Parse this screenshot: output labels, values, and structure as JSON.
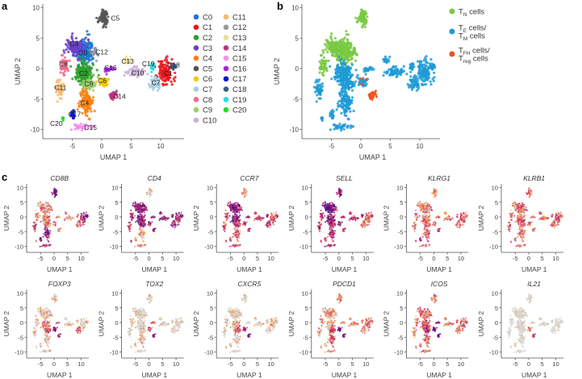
{
  "panel_labels": {
    "a": "a",
    "b": "b",
    "c": "c"
  },
  "axis": {
    "x_label": "UMAP 1",
    "y_label": "UMAP 2",
    "x_ticks": [
      "-5",
      "0",
      "5",
      "10"
    ],
    "y_ticks": [
      "10",
      "5",
      "0",
      "-5",
      "-10"
    ]
  },
  "chart_data": [
    {
      "panel": "a",
      "type": "scatter",
      "xlabel": "UMAP 1",
      "ylabel": "UMAP 2",
      "xlim": [
        -9,
        13
      ],
      "ylim": [
        -11,
        10
      ],
      "x_ticks": [
        -5,
        0,
        5,
        10
      ],
      "y_ticks": [
        10,
        5,
        0,
        -5,
        -10
      ],
      "legend_placement": "right",
      "clusters": [
        {
          "name": "C0",
          "color": "#1f77d0",
          "center": [
            -2.8,
            3.0
          ],
          "spread": [
            1.3,
            1.8
          ],
          "weight": 3,
          "label_xy": [
            -3.2,
            2.6
          ]
        },
        {
          "name": "C1",
          "color": "#e8161b",
          "center": [
            10.9,
            -0.5
          ],
          "spread": [
            1.0,
            1.6
          ],
          "weight": 2,
          "label_xy": [
            11.3,
            -0.8
          ]
        },
        {
          "name": "C2",
          "color": "#2ca02c",
          "center": [
            -3.0,
            -0.8
          ],
          "spread": [
            1.3,
            1.3
          ],
          "weight": 3,
          "label_xy": [
            -3.1,
            -0.8
          ]
        },
        {
          "name": "C3",
          "color": "#6a3fc8",
          "center": [
            -4.5,
            3.5
          ],
          "spread": [
            1.2,
            1.3
          ],
          "weight": 2,
          "label_xy": [
            -4.7,
            4.1
          ]
        },
        {
          "name": "C4",
          "color": "#ff7f0e",
          "center": [
            -2.6,
            -5.5
          ],
          "spread": [
            1.0,
            1.8
          ],
          "weight": 2,
          "label_xy": [
            -2.9,
            -5.6
          ]
        },
        {
          "name": "C5",
          "color": "#555555",
          "center": [
            0.3,
            8.5
          ],
          "spread": [
            0.7,
            1.1
          ],
          "weight": 1.5,
          "label_xy": [
            2.3,
            8.3
          ]
        },
        {
          "name": "C6",
          "color": "#f5c800",
          "center": [
            0.3,
            -2.2
          ],
          "spread": [
            0.7,
            0.6
          ],
          "weight": 0.8,
          "label_xy": [
            0.1,
            -2.0
          ]
        },
        {
          "name": "C7",
          "color": "#a6cde3",
          "center": [
            9.0,
            -2.3
          ],
          "spread": [
            0.8,
            0.9
          ],
          "weight": 0.8,
          "label_xy": [
            9.2,
            -2.3
          ]
        },
        {
          "name": "C8",
          "color": "#f06a8c",
          "center": [
            -6.4,
            0.5
          ],
          "spread": [
            0.7,
            1.3
          ],
          "weight": 0.8,
          "label_xy": [
            -6.5,
            0.7
          ]
        },
        {
          "name": "C9",
          "color": "#9ccf6e",
          "center": [
            -2.0,
            -2.6
          ],
          "spread": [
            0.9,
            0.8
          ],
          "weight": 1,
          "label_xy": [
            -2.2,
            -2.5
          ]
        },
        {
          "name": "C10",
          "color": "#c9b1d9",
          "center": [
            5.8,
            -0.5
          ],
          "spread": [
            1.4,
            0.6
          ],
          "weight": 1,
          "label_xy": [
            6.1,
            -0.7
          ]
        },
        {
          "name": "C11",
          "color": "#f9b86b",
          "center": [
            -7.1,
            -3.5
          ],
          "spread": [
            0.6,
            1.2
          ],
          "weight": 0.8,
          "label_xy": [
            -7.0,
            -3.1
          ]
        },
        {
          "name": "C12",
          "color": "#999999",
          "center": [
            -1.3,
            2.5
          ],
          "spread": [
            0.5,
            0.8
          ],
          "weight": 0.4,
          "label_xy": [
            0.0,
            2.7
          ]
        },
        {
          "name": "C13",
          "color": "#e8e08a",
          "center": [
            4.3,
            1.3
          ],
          "spread": [
            0.6,
            0.4
          ],
          "weight": 0.3,
          "label_xy": [
            4.4,
            1.2
          ]
        },
        {
          "name": "C14",
          "color": "#c03080",
          "center": [
            1.8,
            -4.5
          ],
          "spread": [
            0.7,
            0.6
          ],
          "weight": 0.5,
          "label_xy": [
            3.0,
            -4.6
          ]
        },
        {
          "name": "C15",
          "color": "#f38de8",
          "center": [
            -3.2,
            -9.5
          ],
          "spread": [
            1.1,
            0.5
          ],
          "weight": 0.6,
          "label_xy": [
            -1.9,
            -9.7
          ]
        },
        {
          "name": "C16",
          "color": "#b01ee8",
          "center": [
            1.2,
            -0.2
          ],
          "spread": [
            0.7,
            0.4
          ],
          "weight": 0.4,
          "label_xy": [
            1.5,
            0.1
          ]
        },
        {
          "name": "C17",
          "color": "#0010e0",
          "center": [
            -4.9,
            -7.6
          ],
          "spread": [
            0.3,
            0.6
          ],
          "weight": 0.3,
          "label_xy": [
            -4.6,
            -7.5
          ]
        },
        {
          "name": "C18",
          "color": "#3b5f85",
          "center": [
            12.2,
            0.3
          ],
          "spread": [
            0.4,
            0.5
          ],
          "weight": 0.3,
          "label_xy": [
            12.2,
            0.6
          ]
        },
        {
          "name": "C19",
          "color": "#1fe0e8",
          "center": [
            8.6,
            0.3
          ],
          "spread": [
            0.4,
            0.5
          ],
          "weight": 0.3,
          "label_xy": [
            7.9,
            0.8
          ]
        },
        {
          "name": "C20",
          "color": "#20e020",
          "center": [
            -6.6,
            -8.1
          ],
          "spread": [
            0.15,
            0.3
          ],
          "weight": 0.1,
          "label_xy": [
            -7.7,
            -9.0
          ]
        }
      ]
    },
    {
      "panel": "b",
      "type": "scatter",
      "xlabel": "UMAP 1",
      "ylabel": "UMAP 2",
      "xlim": [
        -9,
        13
      ],
      "ylim": [
        -11,
        10
      ],
      "legend_placement": "right",
      "groups": [
        {
          "key": "TN",
          "main": "T",
          "sub": "N",
          "rest": " cells",
          "line2": null,
          "color": "#7ac943",
          "clusters": [
            "C0",
            "C3",
            "C5",
            "C8",
            "C12"
          ]
        },
        {
          "key": "TETM",
          "main": "T",
          "sub": "E",
          "rest": " cells/",
          "line2": {
            "main": "T",
            "sub": "M",
            "rest": " cells"
          },
          "color": "#1f9bd6",
          "clusters": [
            "C1",
            "C2",
            "C4",
            "C6",
            "C7",
            "C9",
            "C10",
            "C11",
            "C13",
            "C15",
            "C16",
            "C17",
            "C18",
            "C19",
            "C20"
          ]
        },
        {
          "key": "TFHTREG",
          "main": "T",
          "sub": "FH",
          "rest": " cells/",
          "line2": {
            "main": "T",
            "sub": "reg",
            "rest": " cells"
          },
          "color": "#f2501f",
          "clusters": [
            "C14"
          ]
        }
      ]
    },
    {
      "panel": "c",
      "type": "scatter",
      "xlabel": "UMAP 1",
      "ylabel": "UMAP 2",
      "xlim": [
        -9,
        13
      ],
      "ylim": [
        -11,
        10
      ],
      "colormap": {
        "none": "#d6d6d6",
        "low": "#fbb040",
        "mid": "#d6336c",
        "high": "#4a0a8a"
      },
      "genes": [
        {
          "name": "CD8B",
          "default": 0.4,
          "levels": {
            "C5": 1,
            "C17": 1,
            "C4": 0.8,
            "C15": 0.8,
            "C1": 0.7,
            "C18": 0.9,
            "C11": 0.7,
            "C10": 0.3,
            "C0": 0.35,
            "C3": 0.35
          }
        },
        {
          "name": "CD4",
          "default": 0.8,
          "levels": {
            "C5": 0.15,
            "C4": 0.3,
            "C15": 0.3,
            "C17": 0.2,
            "C1": 0.7,
            "C11": 0.6
          }
        },
        {
          "name": "CCR7",
          "default": 0.6,
          "levels": {
            "C0": 0.85,
            "C3": 0.85,
            "C2": 0.8,
            "C5": 0.4,
            "C1": 0.5,
            "C4": 0.5
          }
        },
        {
          "name": "SELL",
          "default": 0.7,
          "levels": {
            "C0": 0.95,
            "C3": 0.95,
            "C5": 0.9,
            "C2": 0.8,
            "C1": 0.5,
            "C7": 0.5
          }
        },
        {
          "name": "KLRG1",
          "default": 0.4,
          "levels": {
            "C5": 0.35,
            "C1": 0.5,
            "C4": 0.5,
            "C17": 0.7,
            "C14": 0.6
          }
        },
        {
          "name": "KLRB1",
          "default": 0.45,
          "levels": {
            "C1": 0.55,
            "C4": 0.5,
            "C11": 0.5
          }
        },
        {
          "name": "FOXP3",
          "default": 0.15,
          "levels": {
            "C6": 0.9,
            "C9": 0.6,
            "C14": 0.7,
            "C16": 0.5,
            "C7": 0.5,
            "C2": 0.3
          }
        },
        {
          "name": "TOX2",
          "default": 0.1,
          "levels": {
            "C14": 0.8,
            "C6": 0.5,
            "C16": 0.5,
            "C4": 0.2
          }
        },
        {
          "name": "CXCR5",
          "default": 0.12,
          "levels": {
            "C14": 0.9,
            "C6": 0.8,
            "C9": 0.5,
            "C2": 0.25,
            "C1": 0.25
          }
        },
        {
          "name": "PDCD1",
          "default": 0.3,
          "levels": {
            "C14": 0.9,
            "C6": 0.9,
            "C9": 0.6,
            "C4": 0.5,
            "C1": 0.4
          }
        },
        {
          "name": "ICOS",
          "default": 0.45,
          "levels": {
            "C14": 0.95,
            "C6": 0.9,
            "C9": 0.7,
            "C16": 0.8,
            "C2": 0.6,
            "C0": 0.4
          }
        },
        {
          "name": "IL21",
          "default": 0.02,
          "levels": {
            "C14": 0.6,
            "C6": 0.3
          }
        }
      ]
    }
  ]
}
